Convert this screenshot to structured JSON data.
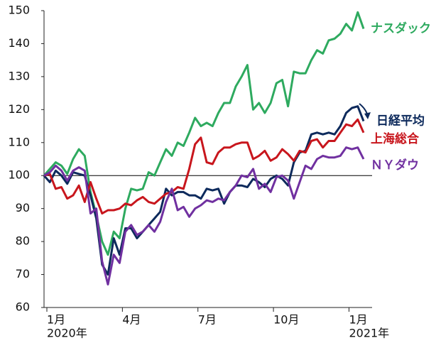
{
  "chart_data": {
    "type": "line",
    "categories": [
      "1月",
      null,
      null,
      null,
      null,
      null,
      null,
      null,
      null,
      null,
      null,
      null,
      null,
      "4月",
      null,
      null,
      null,
      null,
      null,
      null,
      null,
      null,
      null,
      null,
      null,
      null,
      "7月",
      null,
      null,
      null,
      null,
      null,
      null,
      null,
      null,
      null,
      null,
      null,
      null,
      "10月",
      null,
      null,
      null,
      null,
      null,
      null,
      null,
      null,
      null,
      null,
      null,
      null,
      "1月",
      null,
      null,
      null
    ],
    "sublabels": [
      "2020年",
      null,
      null,
      null,
      null,
      null,
      null,
      null,
      null,
      null,
      null,
      null,
      null,
      null,
      null,
      null,
      null,
      null,
      null,
      null,
      null,
      null,
      null,
      null,
      null,
      null,
      null,
      null,
      null,
      null,
      null,
      null,
      null,
      null,
      null,
      null,
      null,
      null,
      null,
      null,
      null,
      null,
      null,
      null,
      null,
      null,
      null,
      null,
      null,
      null,
      null,
      null,
      "2021年",
      null,
      null,
      null
    ],
    "series": [
      {
        "name": "ナスダック",
        "color": "#2eaa5f",
        "values": [
          100,
          102,
          104,
          103,
          100.5,
          105,
          108,
          106,
          95,
          88,
          80,
          76,
          83,
          81,
          90,
          96,
          95.5,
          96,
          101,
          100,
          104,
          108,
          106,
          110,
          109,
          113,
          117.5,
          115,
          116,
          115,
          119,
          122,
          122,
          127,
          130,
          133.5,
          120,
          122,
          119,
          122,
          128,
          129,
          121,
          131.5,
          131,
          131,
          135,
          138,
          137,
          141,
          141.5,
          143,
          146,
          144,
          149.5,
          144.5
        ]
      },
      {
        "name": "日経平均",
        "color": "#0d2a5c",
        "values": [
          100,
          98,
          101.5,
          100,
          97.5,
          101,
          100.5,
          100,
          94,
          87,
          73,
          70,
          81,
          76,
          84,
          84,
          81,
          83,
          85,
          87,
          89,
          96,
          94,
          95,
          95,
          94,
          94,
          93,
          96,
          95.5,
          96,
          91.5,
          95,
          97,
          97,
          96.5,
          99,
          98,
          96.5,
          99,
          100,
          99,
          97,
          104,
          107,
          107.5,
          112.5,
          113,
          112.5,
          113,
          112.5,
          115,
          119,
          120.5,
          121,
          116.5
        ]
      },
      {
        "name": "上海総合",
        "color": "#c8161d",
        "values": [
          100,
          100.5,
          96,
          96.5,
          93,
          94,
          97,
          92,
          98,
          93,
          88.5,
          89.5,
          89.5,
          90,
          91.5,
          91,
          92.5,
          93.5,
          92,
          91.5,
          93,
          94.5,
          95,
          96.5,
          96,
          102,
          109.5,
          111.5,
          104,
          103.5,
          107,
          108.5,
          108.5,
          109.5,
          110,
          110,
          105,
          106,
          107.5,
          104.5,
          105.5,
          108,
          106.5,
          104.5,
          107.5,
          107,
          110.5,
          111,
          108.5,
          110.5,
          110.5,
          113,
          115.5,
          115,
          117,
          113
        ]
      },
      {
        "name": "ＮＹダウ",
        "color": "#7030a0",
        "values": [
          100,
          101,
          103,
          101.5,
          98.5,
          101.5,
          102.5,
          101.5,
          88.5,
          90,
          74,
          67,
          76,
          73.5,
          83,
          85,
          82,
          83,
          85,
          83,
          86,
          92,
          96,
          89.5,
          90.5,
          87.5,
          90,
          91,
          92.5,
          92,
          93,
          92.5,
          95,
          97,
          100,
          99.5,
          102,
          96,
          97.5,
          95,
          99.5,
          100,
          98.5,
          93,
          98,
          103,
          102,
          105,
          106,
          105.5,
          105.5,
          106,
          108.5,
          108,
          108.5,
          105
        ]
      }
    ],
    "ylim": [
      60,
      150
    ],
    "yticks": [
      60,
      70,
      80,
      90,
      100,
      110,
      120,
      130,
      140,
      150
    ],
    "reference_line": 100,
    "grid": false
  }
}
